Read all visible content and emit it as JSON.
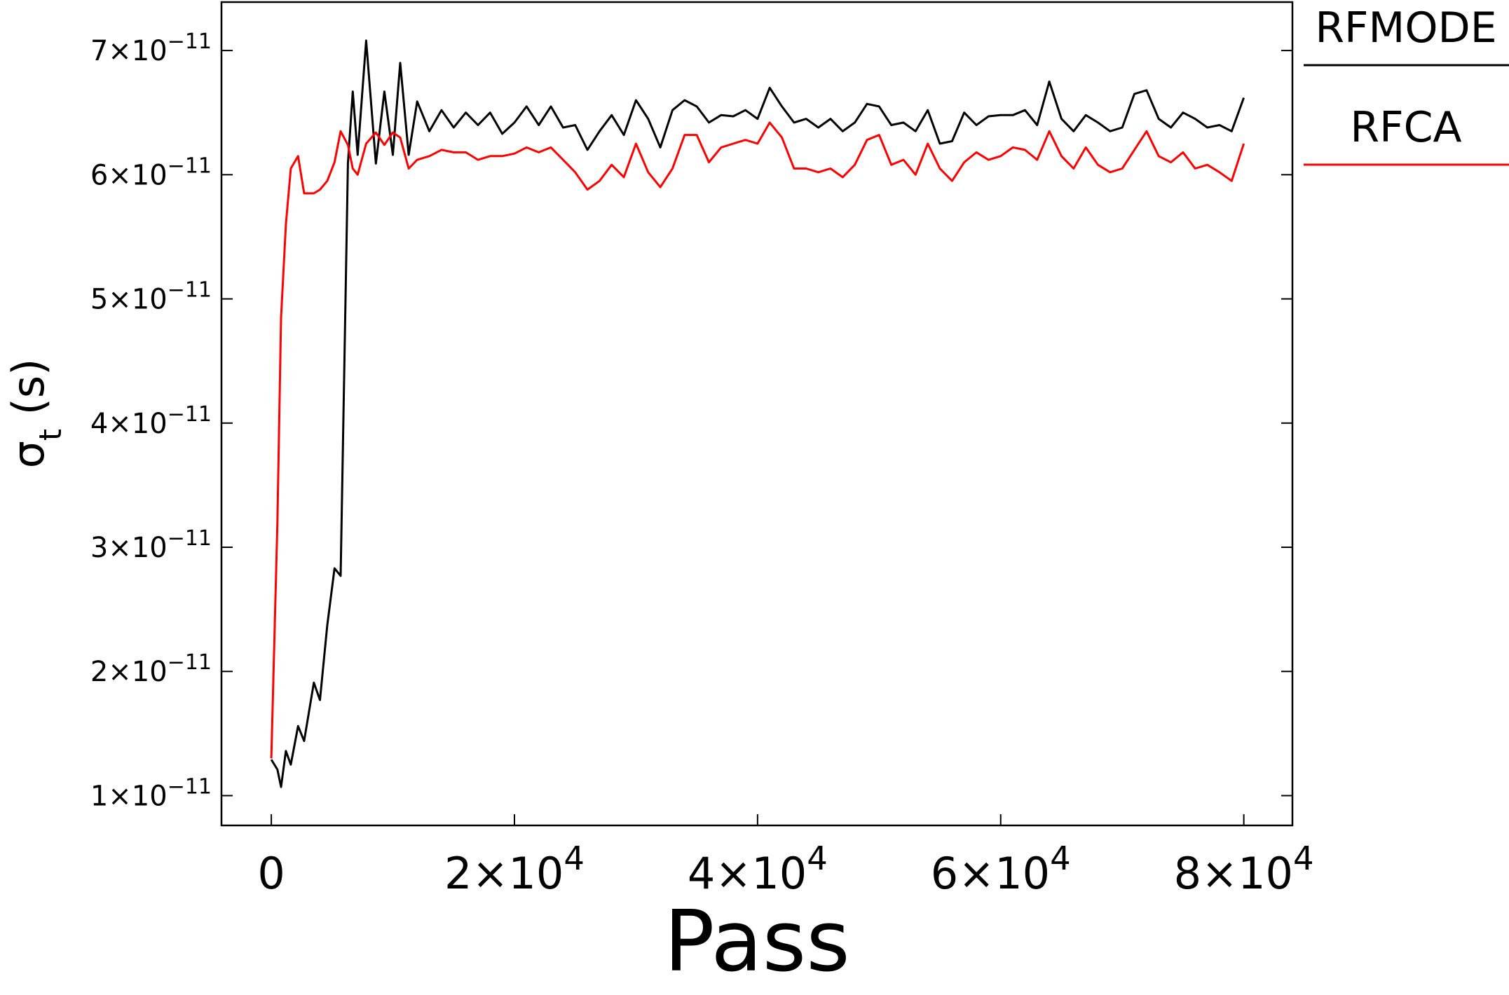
{
  "chart_data": {
    "type": "line",
    "x_label": "Pass",
    "y_label": "σt (s)",
    "x": [
      0,
      500,
      800,
      1200,
      1600,
      2200,
      2700,
      3500,
      4000,
      4600,
      5200,
      5700,
      6300,
      6700,
      7100,
      7800,
      8600,
      9300,
      10000,
      10600,
      11300,
      12000,
      13000,
      14000,
      15000,
      16000,
      17000,
      18000,
      19000,
      20000,
      21000,
      22000,
      23000,
      24000,
      25000,
      26000,
      27000,
      28000,
      29000,
      30000,
      31000,
      32000,
      33000,
      34000,
      35000,
      36000,
      37000,
      38000,
      39000,
      40000,
      41000,
      42000,
      43000,
      44000,
      45000,
      46000,
      47000,
      48000,
      49000,
      50000,
      51000,
      52000,
      53000,
      54000,
      55000,
      56000,
      57000,
      58000,
      59000,
      60000,
      61000,
      62000,
      63000,
      64000,
      65000,
      66000,
      67000,
      68000,
      69000,
      70000,
      71000,
      72000,
      73000,
      74000,
      75000,
      76000,
      77000,
      78000,
      79000,
      80000
    ],
    "series": [
      {
        "name": "RFMODE",
        "color": "#000000",
        "values": [
          1.29e-11,
          1.21e-11,
          1.07e-11,
          1.36e-11,
          1.25e-11,
          1.56e-11,
          1.44e-11,
          1.91e-11,
          1.77e-11,
          2.37e-11,
          2.83e-11,
          2.77e-11,
          6.09e-11,
          6.67e-11,
          6.16e-11,
          7.08e-11,
          6.09e-11,
          6.67e-11,
          6.16e-11,
          6.9e-11,
          6.16e-11,
          6.59e-11,
          6.35e-11,
          6.52e-11,
          6.38e-11,
          6.5e-11,
          6.4e-11,
          6.5e-11,
          6.33e-11,
          6.42e-11,
          6.55e-11,
          6.4e-11,
          6.55e-11,
          6.38e-11,
          6.4e-11,
          6.2e-11,
          6.35e-11,
          6.48e-11,
          6.32e-11,
          6.6e-11,
          6.45e-11,
          6.22e-11,
          6.52e-11,
          6.6e-11,
          6.55e-11,
          6.42e-11,
          6.48e-11,
          6.47e-11,
          6.52e-11,
          6.45e-11,
          6.7e-11,
          6.55e-11,
          6.42e-11,
          6.45e-11,
          6.38e-11,
          6.45e-11,
          6.35e-11,
          6.42e-11,
          6.57e-11,
          6.55e-11,
          6.4e-11,
          6.42e-11,
          6.35e-11,
          6.52e-11,
          6.25e-11,
          6.27e-11,
          6.5e-11,
          6.4e-11,
          6.47e-11,
          6.48e-11,
          6.48e-11,
          6.52e-11,
          6.4e-11,
          6.75e-11,
          6.45e-11,
          6.35e-11,
          6.48e-11,
          6.42e-11,
          6.35e-11,
          6.38e-11,
          6.65e-11,
          6.68e-11,
          6.45e-11,
          6.38e-11,
          6.5e-11,
          6.45e-11,
          6.38e-11,
          6.4e-11,
          6.35e-11,
          6.62e-11
        ]
      },
      {
        "name": "RFCA",
        "color": "#ff0000",
        "values": [
          1.3e-11,
          3.2e-11,
          4.85e-11,
          5.6e-11,
          6.05e-11,
          6.15e-11,
          5.85e-11,
          5.85e-11,
          5.88e-11,
          5.95e-11,
          6.1e-11,
          6.35e-11,
          6.24e-11,
          6.05e-11,
          6e-11,
          6.25e-11,
          6.34e-11,
          6.24e-11,
          6.34e-11,
          6.3e-11,
          6.05e-11,
          6.12e-11,
          6.15e-11,
          6.2e-11,
          6.18e-11,
          6.18e-11,
          6.12e-11,
          6.15e-11,
          6.15e-11,
          6.17e-11,
          6.22e-11,
          6.18e-11,
          6.22e-11,
          6.12e-11,
          6.02e-11,
          5.88e-11,
          5.95e-11,
          6.08e-11,
          5.98e-11,
          6.25e-11,
          6.02e-11,
          5.9e-11,
          6.05e-11,
          6.32e-11,
          6.32e-11,
          6.1e-11,
          6.22e-11,
          6.25e-11,
          6.28e-11,
          6.25e-11,
          6.42e-11,
          6.3e-11,
          6.05e-11,
          6.05e-11,
          6.02e-11,
          6.05e-11,
          5.98e-11,
          6.08e-11,
          6.28e-11,
          6.32e-11,
          6.08e-11,
          6.12e-11,
          6e-11,
          6.25e-11,
          6.05e-11,
          5.95e-11,
          6.1e-11,
          6.18e-11,
          6.12e-11,
          6.15e-11,
          6.22e-11,
          6.2e-11,
          6.12e-11,
          6.35e-11,
          6.15e-11,
          6.05e-11,
          6.22e-11,
          6.08e-11,
          6.02e-11,
          6.05e-11,
          6.2e-11,
          6.35e-11,
          6.15e-11,
          6.1e-11,
          6.18e-11,
          6.05e-11,
          6.08e-11,
          6.02e-11,
          5.95e-11,
          6.25e-11
        ]
      }
    ],
    "xlim": [
      -4100,
      84000
    ],
    "ylim": [
      7.6e-12,
      7.39e-11
    ],
    "xticks": [
      0,
      {
        "value": 20000,
        "label": "2×104"
      },
      {
        "value": 40000,
        "label": "4×104"
      },
      {
        "value": 60000,
        "label": "6×104"
      },
      {
        "value": 80000,
        "label": "8×104"
      }
    ],
    "yticks": [
      {
        "value": 1e-11,
        "label": "1×10−11"
      },
      {
        "value": 2e-11,
        "label": "2×10−11"
      },
      {
        "value": 3e-11,
        "label": "3×10−11"
      },
      {
        "value": 4e-11,
        "label": "4×10−11"
      },
      {
        "value": 5e-11,
        "label": "5×10−11"
      },
      {
        "value": 6e-11,
        "label": "6×10−11"
      },
      {
        "value": 7e-11,
        "label": "7×10−11"
      }
    ],
    "grid": false,
    "legend": "outside-top-right"
  }
}
